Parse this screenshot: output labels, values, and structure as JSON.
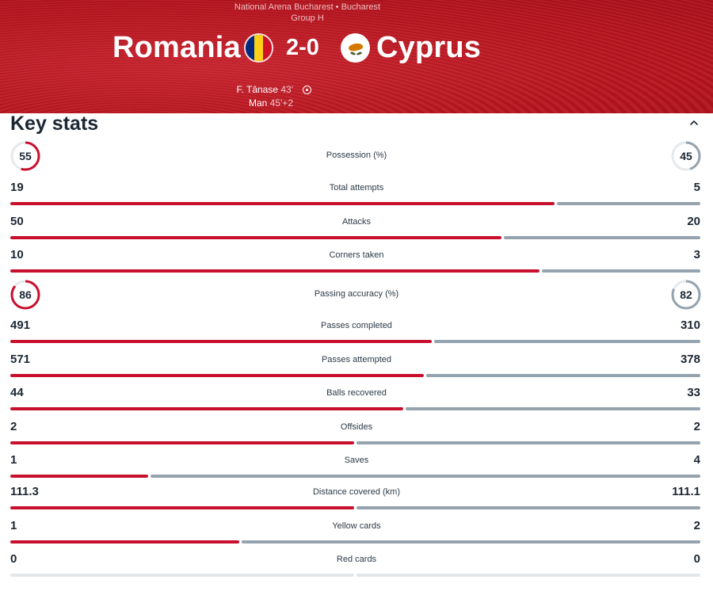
{
  "match": {
    "venue": "National Arena Bucharest • Bucharest",
    "group": "Group H",
    "home": "Romania",
    "away": "Cyprus",
    "score": "2-0",
    "home_flag_colors": [
      "#002b7f",
      "#fcd116",
      "#ce1126"
    ],
    "away_flag_colors": [
      "#ffffff",
      "#d57800",
      "#4e5b31"
    ],
    "scorers": [
      {
        "name": "F. Tânase",
        "minute": "43'"
      },
      {
        "name": "Man",
        "minute": "45'+2"
      }
    ],
    "goal_icon": "football-icon"
  },
  "section": {
    "title": "Key stats",
    "toggle_icon": "chevron-up-icon"
  },
  "colors": {
    "home": "#c8102e",
    "away": "#94a3ae",
    "neutral": "#e3e7ea"
  },
  "stats": [
    {
      "label": "Possession (%)",
      "home": "55",
      "away": "45",
      "type": "ring",
      "home_value": 55,
      "away_value": 45
    },
    {
      "label": "Total attempts",
      "home": "19",
      "away": "5",
      "type": "bar",
      "home_value": 19,
      "away_value": 5
    },
    {
      "label": "Attacks",
      "home": "50",
      "away": "20",
      "type": "bar",
      "home_value": 50,
      "away_value": 20
    },
    {
      "label": "Corners taken",
      "home": "10",
      "away": "3",
      "type": "bar",
      "home_value": 10,
      "away_value": 3
    },
    {
      "label": "Passing accuracy (%)",
      "home": "86",
      "away": "82",
      "type": "ring",
      "home_value": 86,
      "away_value": 82
    },
    {
      "label": "Passes completed",
      "home": "491",
      "away": "310",
      "type": "bar",
      "home_value": 491,
      "away_value": 310
    },
    {
      "label": "Passes attempted",
      "home": "571",
      "away": "378",
      "type": "bar",
      "home_value": 571,
      "away_value": 378
    },
    {
      "label": "Balls recovered",
      "home": "44",
      "away": "33",
      "type": "bar",
      "home_value": 44,
      "away_value": 33
    },
    {
      "label": "Offsides",
      "home": "2",
      "away": "2",
      "type": "bar",
      "home_value": 2,
      "away_value": 2
    },
    {
      "label": "Saves",
      "home": "1",
      "away": "4",
      "type": "bar",
      "home_value": 1,
      "away_value": 4
    },
    {
      "label": "Distance covered (km)",
      "home": "111.3",
      "away": "111.1",
      "type": "bar",
      "home_value": 111.3,
      "away_value": 111.1
    },
    {
      "label": "Yellow cards",
      "home": "1",
      "away": "2",
      "type": "bar",
      "home_value": 1,
      "away_value": 2
    },
    {
      "label": "Red cards",
      "home": "0",
      "away": "0",
      "type": "bar",
      "home_value": 0,
      "away_value": 0
    }
  ]
}
